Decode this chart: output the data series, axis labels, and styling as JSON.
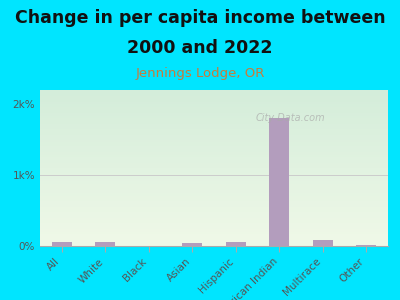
{
  "title_line1": "Change in per capita income between",
  "title_line2": "2000 and 2022",
  "subtitle": "Jennings Lodge, OR",
  "categories": [
    "All",
    "White",
    "Black",
    "Asian",
    "Hispanic",
    "American Indian",
    "Multirace",
    "Other"
  ],
  "values": [
    55,
    55,
    4,
    40,
    55,
    1800,
    80,
    20
  ],
  "bar_color": "#b39dbd",
  "background_color": "#00e5ff",
  "plot_bg_top": "#d4edda",
  "plot_bg_bottom": "#f0f9e8",
  "title_fontsize": 12.5,
  "title_fontweight": "bold",
  "subtitle_fontsize": 9.5,
  "subtitle_color": "#c97b3a",
  "title_color": "#111111",
  "yticks": [
    0,
    1000,
    2000
  ],
  "ytick_labels": [
    "0%",
    "1k%",
    "2k%"
  ],
  "ylim": [
    0,
    2200
  ],
  "watermark": "City-Data.com",
  "tick_label_color": "#555555",
  "grid_color": "#dddddd",
  "hline_color": "#cccccc"
}
